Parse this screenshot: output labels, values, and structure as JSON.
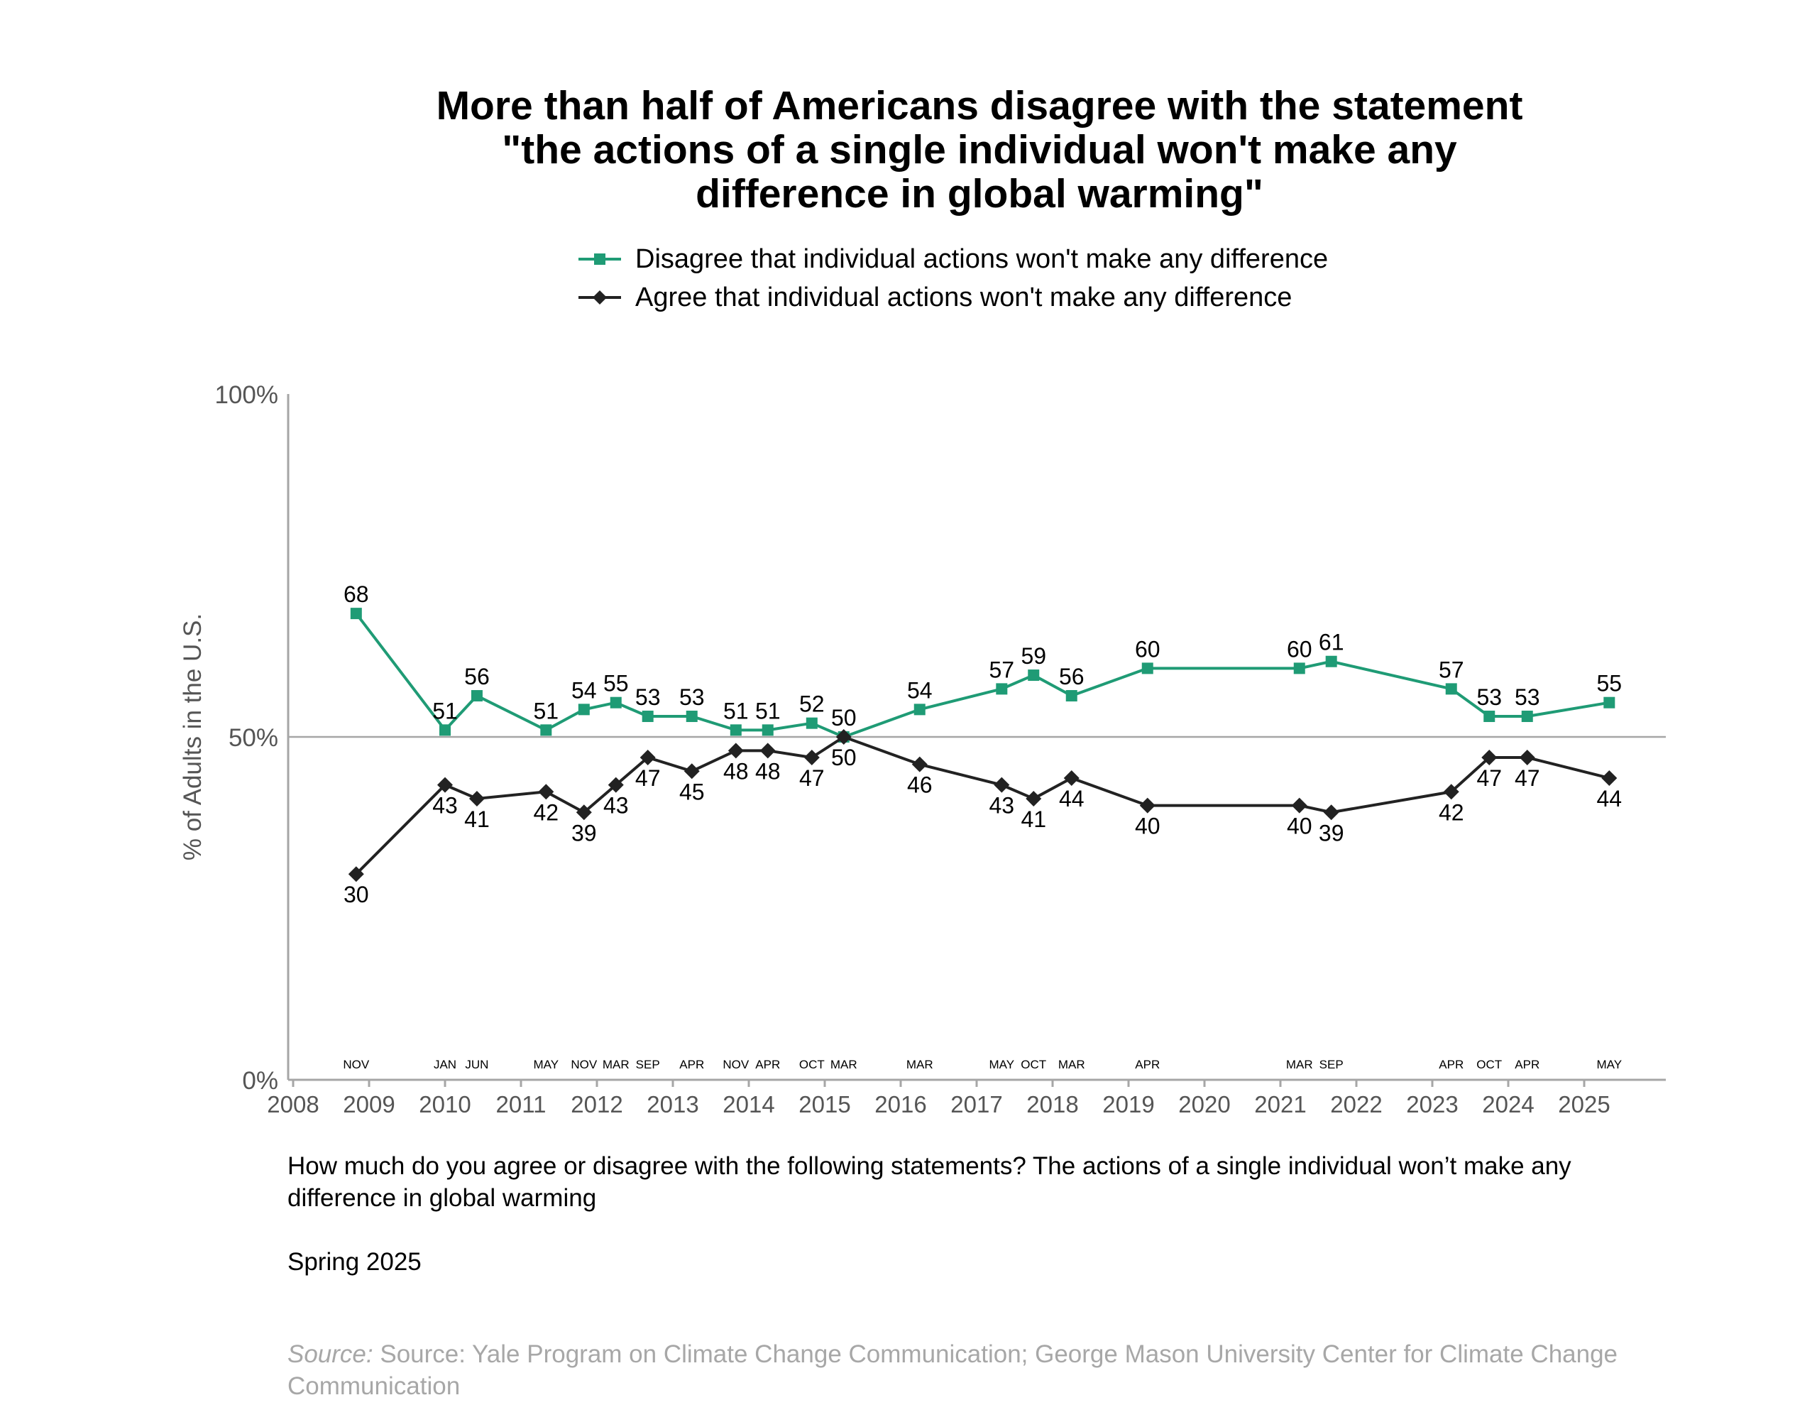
{
  "title_lines": [
    "More than half of Americans disagree with the statement",
    "\"the actions of a single individual won't make any",
    "difference in global warming\""
  ],
  "legend": [
    {
      "label": "Disagree that individual actions won't make any difference",
      "marker": "square",
      "color": "#1f9b75"
    },
    {
      "label": "Agree that individual actions won't make any difference",
      "marker": "diamond",
      "color": "#222222"
    }
  ],
  "colors": {
    "disagree": "#1f9b75",
    "agree": "#222222",
    "axis": "#a6a6a6",
    "axis_text": "#555555"
  },
  "question": "How much do you agree or disagree with the following statements? The actions of a single individual won’t make any difference in global warming",
  "season": "Spring 2025",
  "source_prefix": "Source:",
  "source_text": " Source: Yale Program on Climate Change Communication; George Mason University Center for Climate Change Communication",
  "chart_data": {
    "type": "line",
    "ylabel": "% of Adults in the U.S.",
    "ylim": [
      0,
      100
    ],
    "yticks": [
      0,
      50,
      100
    ],
    "ytick_labels": [
      "0%",
      "50%",
      "100%"
    ],
    "reference_line": 50,
    "xlim": [
      2008,
      2026.3
    ],
    "xticks": [
      2008,
      2009,
      2010,
      2011,
      2012,
      2013,
      2014,
      2015,
      2016,
      2017,
      2018,
      2019,
      2020,
      2021,
      2022,
      2023,
      2024,
      2025
    ],
    "x": [
      2008.83,
      2010.0,
      2010.42,
      2011.33,
      2011.83,
      2012.25,
      2012.67,
      2013.25,
      2013.83,
      2014.25,
      2014.83,
      2015.25,
      2016.25,
      2017.33,
      2017.75,
      2018.25,
      2019.25,
      2021.25,
      2021.67,
      2023.25,
      2023.75,
      2024.25,
      2025.33
    ],
    "survey_months": [
      "NOV",
      "JAN",
      "JUN",
      "MAY",
      "NOV",
      "MAR",
      "SEP",
      "APR",
      "NOV",
      "APR",
      "OCT",
      "MAR",
      "MAR",
      "MAY",
      "OCT",
      "MAR",
      "APR",
      "MAR",
      "SEP",
      "APR",
      "OCT",
      "APR",
      "MAY"
    ],
    "series": [
      {
        "name": "Disagree that individual actions won't make any difference",
        "values": [
          68,
          51,
          56,
          51,
          54,
          55,
          53,
          53,
          51,
          51,
          52,
          50,
          54,
          57,
          59,
          56,
          60,
          60,
          61,
          57,
          53,
          53,
          55
        ]
      },
      {
        "name": "Agree that individual actions won't make any difference",
        "values": [
          30,
          43,
          41,
          42,
          39,
          43,
          47,
          45,
          48,
          48,
          47,
          50,
          46,
          43,
          41,
          44,
          40,
          40,
          39,
          42,
          47,
          47,
          44
        ]
      }
    ],
    "grid": false,
    "legend_position": "top"
  }
}
